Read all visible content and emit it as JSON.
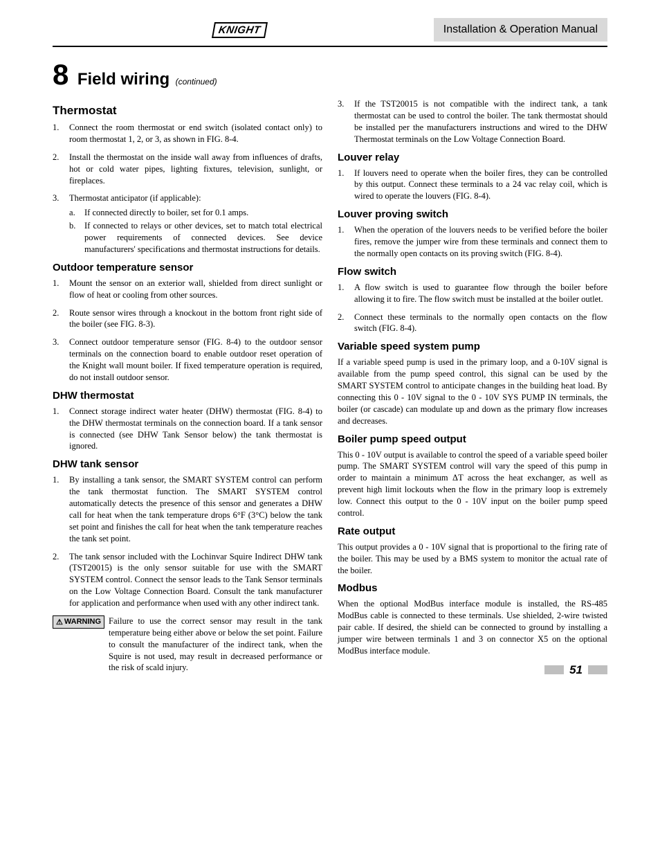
{
  "header": {
    "logo_text": "KNIGHT",
    "manual_title": "Installation & Operation Manual"
  },
  "chapter": {
    "number": "8",
    "title": "Field wiring",
    "continued": "(continued)"
  },
  "left": {
    "thermostat": {
      "heading": "Thermostat",
      "items": [
        "Connect the room thermostat or end switch (isolated contact only) to room thermostat 1, 2, or 3, as shown in FIG. 8-4.",
        "Install the thermostat on the inside wall away from influences of drafts, hot or cold water pipes, lighting fixtures, television, sunlight, or fireplaces.",
        "Thermostat anticipator (if applicable):"
      ],
      "sub": [
        "If connected directly to boiler, set for 0.1 amps.",
        "If connected to relays or other devices, set to match total electrical power requirements of connected devices.  See device manufacturers' specifications and thermostat instructions for details."
      ]
    },
    "outdoor": {
      "heading": "Outdoor temperature sensor",
      "items": [
        "Mount the sensor on an exterior wall, shielded from direct sunlight or flow of heat or cooling from other sources.",
        "Route sensor wires through a knockout in the bottom front right side of the boiler (see FIG. 8-3).",
        "Connect outdoor temperature sensor (FIG. 8-4) to the outdoor sensor terminals on the connection board to enable outdoor reset operation of the Knight wall mount boiler.  If fixed temperature operation is required, do not install outdoor sensor."
      ]
    },
    "dhw_thermostat": {
      "heading": "DHW thermostat",
      "items": [
        "Connect storage indirect water heater (DHW) thermostat (FIG. 8-4) to the DHW thermostat terminals on the connection board.  If a tank sensor is connected (see DHW Tank Sensor below) the tank thermostat is ignored."
      ]
    },
    "dhw_tank": {
      "heading": "DHW tank sensor",
      "items": [
        "By installing a tank sensor, the SMART SYSTEM control can perform the tank thermostat function.  The SMART SYSTEM control automatically detects the presence of this sensor and generates a DHW call for heat when the tank temperature drops 6°F (3°C) below the tank set point and finishes the call for heat when the tank temperature reaches the tank set point.",
        "The tank sensor included with the Lochinvar Squire Indirect DHW tank (TST20015) is the only sensor suitable for use with the SMART SYSTEM control.  Connect the sensor leads to the Tank Sensor terminals on the Low Voltage Connection Board.  Consult the tank manufacturer for application and performance when used with any other indirect tank."
      ],
      "warning_label": "WARNING",
      "warning_text": "Failure to use the correct sensor may result in the tank temperature being either above or below the set point.  Failure to consult the manufacturer of the indirect tank, when the Squire is not used, may result in decreased performance or the risk of scald injury."
    }
  },
  "right": {
    "dhw_tank_cont": {
      "start": "3",
      "items": [
        "If the TST20015 is not compatible with the indirect tank, a tank thermostat can be used to control the boiler.  The tank thermostat should be installed per the manufacturers instructions and wired to the DHW Thermostat terminals on the Low Voltage Connection Board."
      ]
    },
    "louver_relay": {
      "heading": "Louver relay",
      "items": [
        "If louvers need to operate when the boiler fires, they can be controlled by this output.  Connect these terminals to a 24 vac relay coil, which is wired to operate the louvers (FIG. 8-4)."
      ]
    },
    "louver_proving": {
      "heading": "Louver proving switch",
      "items": [
        "When the operation of the louvers needs to be verified before the boiler fires, remove the jumper wire from these terminals and connect them to the normally open contacts on its proving switch (FIG. 8-4)."
      ]
    },
    "flow_switch": {
      "heading": "Flow switch",
      "items": [
        "A flow switch is used to guarantee flow through the boiler before allowing it to fire.  The flow switch must be installed at the boiler outlet.",
        "Connect these terminals to the normally open contacts on the flow switch (FIG. 8-4)."
      ]
    },
    "variable_pump": {
      "heading": "Variable speed system pump",
      "body": "If a variable speed pump is used in the primary loop, and a 0-10V signal is available from the pump speed control, this signal can be used by the SMART SYSTEM control to anticipate changes in the building heat load.  By connecting this 0 - 10V signal to the 0 - 10V SYS PUMP IN terminals, the boiler (or cascade) can modulate up and down as the primary flow increases and decreases."
    },
    "boiler_pump": {
      "heading": "Boiler pump speed output",
      "body": "This 0 - 10V output is available to control the speed of a variable speed boiler pump.  The SMART SYSTEM control will vary the speed of this pump in order to maintain a minimum ΔT across the heat exchanger, as well as prevent high limit lockouts when the flow in the primary loop is extremely low.  Connect this output to the 0 - 10V input on the boiler pump speed control."
    },
    "rate_output": {
      "heading": "Rate output",
      "body": "This output provides a 0 - 10V signal that is proportional to the firing rate of the boiler.  This may be used by a BMS system to monitor the actual rate of the boiler."
    },
    "modbus": {
      "heading": "Modbus",
      "body": "When the optional ModBus interface module is installed, the RS-485 ModBus cable is connected to these terminals.  Use shielded, 2-wire twisted pair cable.  If desired, the shield can be connected to ground by installing a jumper wire between terminals 1 and 3 on connector X5 on the optional ModBus interface module."
    }
  },
  "footer": {
    "page_number": "51"
  }
}
